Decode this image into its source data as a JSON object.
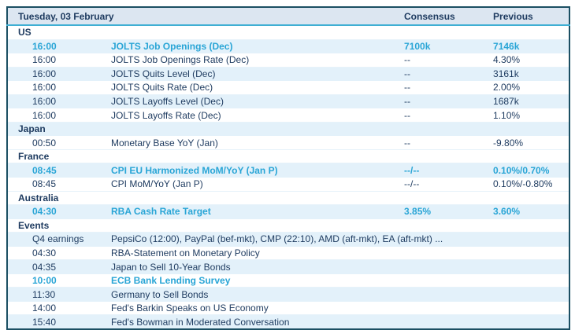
{
  "header": {
    "title": "Tuesday, 03 February",
    "consensus_label": "Consensus",
    "previous_label": "Previous"
  },
  "colors": {
    "border_dark": "#1b4f63",
    "header_bg": "#dce6f1",
    "accent_line": "#3fafd3",
    "stripe_blue": "#e3f1fa",
    "text_dark": "#1d3a5f",
    "highlight_teal": "#29a5d6"
  },
  "rows": [
    {
      "type": "section",
      "label": "US",
      "shade": "white"
    },
    {
      "type": "event",
      "time": "16:00",
      "event": "JOLTS Job Openings (Dec)",
      "consensus": "7100k",
      "previous": "7146k",
      "shade": "blue",
      "highlight": true
    },
    {
      "type": "event",
      "time": "16:00",
      "event": "JOLTS Job Openings Rate (Dec)",
      "consensus": "--",
      "previous": "4.30%",
      "shade": "white",
      "highlight": false
    },
    {
      "type": "event",
      "time": "16:00",
      "event": "JOLTS Quits Level (Dec)",
      "consensus": "--",
      "previous": "3161k",
      "shade": "blue",
      "highlight": false
    },
    {
      "type": "event",
      "time": "16:00",
      "event": "JOLTS Quits Rate (Dec)",
      "consensus": "--",
      "previous": "2.00%",
      "shade": "white",
      "highlight": false
    },
    {
      "type": "event",
      "time": "16:00",
      "event": "JOLTS Layoffs Level (Dec)",
      "consensus": "--",
      "previous": "1687k",
      "shade": "blue",
      "highlight": false
    },
    {
      "type": "event",
      "time": "16:00",
      "event": "JOLTS Layoffs Rate (Dec)",
      "consensus": "--",
      "previous": "1.10%",
      "shade": "white",
      "highlight": false
    },
    {
      "type": "section",
      "label": "Japan",
      "shade": "blue"
    },
    {
      "type": "event",
      "time": "00:50",
      "event": "Monetary Base YoY (Jan)",
      "consensus": "--",
      "previous": "-9.80%",
      "shade": "white",
      "highlight": false
    },
    {
      "type": "section",
      "label": "France",
      "shade": "white"
    },
    {
      "type": "event",
      "time": "08:45",
      "event": "CPI EU Harmonized MoM/YoY (Jan P)",
      "consensus": "--/--",
      "previous": "0.10%/0.70%",
      "shade": "blue",
      "highlight": true
    },
    {
      "type": "event",
      "time": "08:45",
      "event": "CPI MoM/YoY (Jan P)",
      "consensus": "--/--",
      "previous": "0.10%/-0.80%",
      "shade": "white",
      "highlight": false
    },
    {
      "type": "section",
      "label": "Australia",
      "shade": "white"
    },
    {
      "type": "event",
      "time": "04:30",
      "event": "RBA Cash Rate Target",
      "consensus": "3.85%",
      "previous": "3.60%",
      "shade": "blue",
      "highlight": true
    },
    {
      "type": "section",
      "label": "Events",
      "shade": "white"
    },
    {
      "type": "event",
      "time": "Q4 earnings",
      "event": "PepsiCo (12:00), PayPal (bef-mkt), CMP (22:10), AMD (aft-mkt), EA (aft-mkt) ...",
      "consensus": "",
      "previous": "",
      "shade": "blue",
      "highlight": false,
      "span": true
    },
    {
      "type": "event",
      "time": "04:30",
      "event": "RBA-Statement on Monetary Policy",
      "consensus": "",
      "previous": "",
      "shade": "white",
      "highlight": false
    },
    {
      "type": "event",
      "time": "04:35",
      "event": "Japan to Sell 10-Year Bonds",
      "consensus": "",
      "previous": "",
      "shade": "blue",
      "highlight": false
    },
    {
      "type": "event",
      "time": "10:00",
      "event": "ECB Bank Lending Survey",
      "consensus": "",
      "previous": "",
      "shade": "white",
      "highlight": true
    },
    {
      "type": "event",
      "time": "11:30",
      "event": "Germany to Sell Bonds",
      "consensus": "",
      "previous": "",
      "shade": "blue",
      "highlight": false
    },
    {
      "type": "event",
      "time": "14:00",
      "event": "Fed's Barkin Speaks on US Economy",
      "consensus": "",
      "previous": "",
      "shade": "white",
      "highlight": false
    },
    {
      "type": "event",
      "time": "15:40",
      "event": "Fed's Bowman in Moderated Conversation",
      "consensus": "",
      "previous": "",
      "shade": "blue",
      "highlight": false
    }
  ]
}
